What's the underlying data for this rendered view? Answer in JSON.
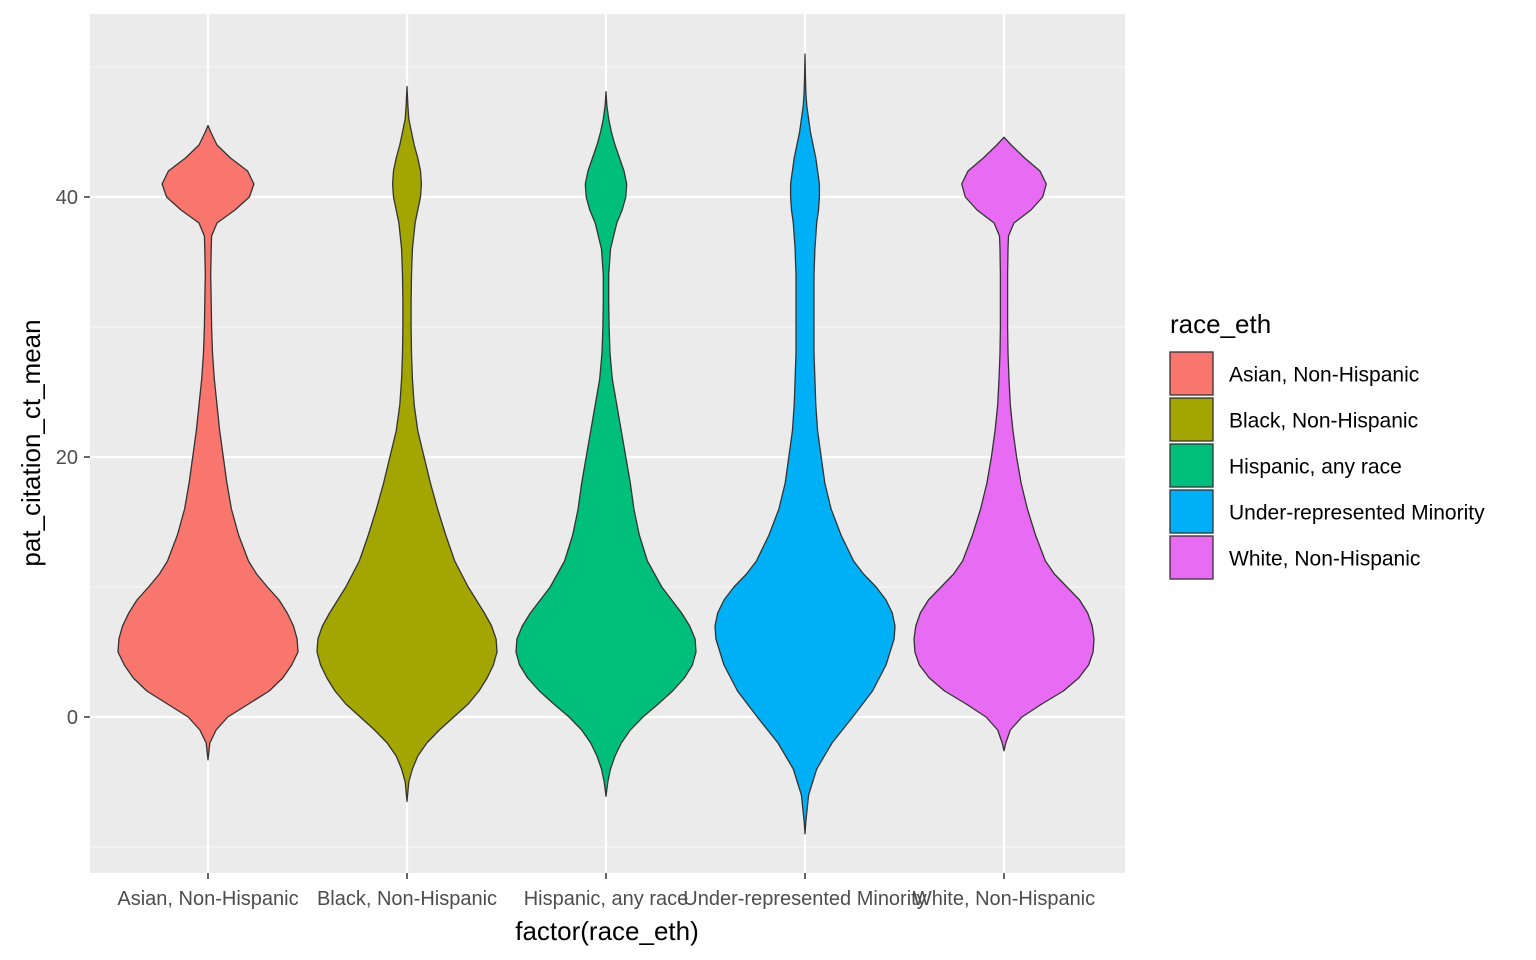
{
  "chart_data": {
    "type": "violin",
    "title": "",
    "xlabel": "factor(race_eth)",
    "ylabel": "pat_citation_ct_mean",
    "categories": [
      "Asian, Non-Hispanic",
      "Black, Non-Hispanic",
      "Hispanic, any race",
      "Under-represented Minority",
      "White, Non-Hispanic"
    ],
    "colors": [
      "#F8766D",
      "#A3A500",
      "#00BF7D",
      "#00B0F6",
      "#E76BF3"
    ],
    "ylim": [
      -10,
      50
    ],
    "yticks": [
      0,
      20,
      40
    ],
    "yticks_minor": [
      -10,
      10,
      30,
      50
    ],
    "grid": true,
    "legend": {
      "title": "race_eth",
      "position": "right",
      "entries": [
        "Asian, Non-Hispanic",
        "Black, Non-Hispanic",
        "Hispanic, any race",
        "Under-represented Minority",
        "White, Non-Hispanic"
      ]
    },
    "series": [
      {
        "range": [
          -3.3,
          45.5
        ],
        "profile": [
          [
            -3.3,
            0
          ],
          [
            -2,
            0.02
          ],
          [
            -1,
            0.09
          ],
          [
            0,
            0.22
          ],
          [
            1,
            0.45
          ],
          [
            2,
            0.68
          ],
          [
            3,
            0.83
          ],
          [
            4,
            0.93
          ],
          [
            5,
            1.0
          ],
          [
            6,
            0.99
          ],
          [
            7,
            0.95
          ],
          [
            8,
            0.88
          ],
          [
            9,
            0.79
          ],
          [
            10,
            0.66
          ],
          [
            11,
            0.54
          ],
          [
            12,
            0.45
          ],
          [
            14,
            0.34
          ],
          [
            16,
            0.26
          ],
          [
            18,
            0.21
          ],
          [
            20,
            0.17
          ],
          [
            22,
            0.13
          ],
          [
            24,
            0.1
          ],
          [
            26,
            0.07
          ],
          [
            28,
            0.05
          ],
          [
            30,
            0.04
          ],
          [
            32,
            0.035
          ],
          [
            34,
            0.03
          ],
          [
            36,
            0.035
          ],
          [
            37,
            0.04
          ],
          [
            38,
            0.1
          ],
          [
            39,
            0.3
          ],
          [
            40,
            0.46
          ],
          [
            41,
            0.51
          ],
          [
            42,
            0.44
          ],
          [
            43,
            0.25
          ],
          [
            44,
            0.1
          ],
          [
            45,
            0.03
          ],
          [
            45.5,
            0
          ]
        ]
      },
      {
        "range": [
          -6.5,
          48.5
        ],
        "profile": [
          [
            -6.5,
            0
          ],
          [
            -5,
            0.02
          ],
          [
            -4,
            0.06
          ],
          [
            -3,
            0.12
          ],
          [
            -2,
            0.22
          ],
          [
            -1,
            0.36
          ],
          [
            0,
            0.52
          ],
          [
            1,
            0.68
          ],
          [
            2,
            0.8
          ],
          [
            3,
            0.89
          ],
          [
            4,
            0.96
          ],
          [
            5,
            1.0
          ],
          [
            6,
            0.99
          ],
          [
            7,
            0.94
          ],
          [
            8,
            0.86
          ],
          [
            9,
            0.77
          ],
          [
            10,
            0.68
          ],
          [
            12,
            0.53
          ],
          [
            14,
            0.43
          ],
          [
            16,
            0.34
          ],
          [
            18,
            0.26
          ],
          [
            20,
            0.19
          ],
          [
            22,
            0.12
          ],
          [
            24,
            0.08
          ],
          [
            26,
            0.06
          ],
          [
            28,
            0.05
          ],
          [
            30,
            0.045
          ],
          [
            32,
            0.045
          ],
          [
            34,
            0.05
          ],
          [
            36,
            0.06
          ],
          [
            38,
            0.09
          ],
          [
            39,
            0.12
          ],
          [
            40,
            0.15
          ],
          [
            41,
            0.16
          ],
          [
            42,
            0.15
          ],
          [
            43,
            0.12
          ],
          [
            44,
            0.08
          ],
          [
            45,
            0.05
          ],
          [
            46,
            0.02
          ],
          [
            47,
            0.01
          ],
          [
            48.5,
            0
          ]
        ]
      },
      {
        "range": [
          -6.1,
          48.1
        ],
        "profile": [
          [
            -6.1,
            0
          ],
          [
            -5,
            0.02
          ],
          [
            -4,
            0.05
          ],
          [
            -3,
            0.1
          ],
          [
            -2,
            0.17
          ],
          [
            -1,
            0.27
          ],
          [
            0,
            0.41
          ],
          [
            1,
            0.58
          ],
          [
            2,
            0.74
          ],
          [
            3,
            0.87
          ],
          [
            4,
            0.96
          ],
          [
            5,
            1.0
          ],
          [
            6,
            0.99
          ],
          [
            7,
            0.93
          ],
          [
            8,
            0.84
          ],
          [
            9,
            0.73
          ],
          [
            10,
            0.62
          ],
          [
            12,
            0.46
          ],
          [
            14,
            0.37
          ],
          [
            16,
            0.31
          ],
          [
            18,
            0.27
          ],
          [
            20,
            0.22
          ],
          [
            22,
            0.17
          ],
          [
            24,
            0.12
          ],
          [
            26,
            0.07
          ],
          [
            28,
            0.045
          ],
          [
            30,
            0.035
          ],
          [
            32,
            0.03
          ],
          [
            34,
            0.03
          ],
          [
            36,
            0.05
          ],
          [
            38,
            0.12
          ],
          [
            39,
            0.18
          ],
          [
            40,
            0.22
          ],
          [
            41,
            0.23
          ],
          [
            42,
            0.2
          ],
          [
            43,
            0.15
          ],
          [
            44,
            0.1
          ],
          [
            45,
            0.06
          ],
          [
            46,
            0.03
          ],
          [
            47,
            0.01
          ],
          [
            48.1,
            0
          ]
        ]
      },
      {
        "range": [
          -9,
          51
        ],
        "profile": [
          [
            -9,
            0
          ],
          [
            -8,
            0.01
          ],
          [
            -6,
            0.04
          ],
          [
            -4,
            0.13
          ],
          [
            -2,
            0.3
          ],
          [
            0,
            0.53
          ],
          [
            2,
            0.75
          ],
          [
            4,
            0.9
          ],
          [
            6,
            0.99
          ],
          [
            7,
            1.0
          ],
          [
            8,
            0.97
          ],
          [
            9,
            0.9
          ],
          [
            10,
            0.79
          ],
          [
            11,
            0.65
          ],
          [
            12,
            0.54
          ],
          [
            14,
            0.4
          ],
          [
            16,
            0.29
          ],
          [
            18,
            0.22
          ],
          [
            20,
            0.18
          ],
          [
            22,
            0.14
          ],
          [
            24,
            0.12
          ],
          [
            26,
            0.11
          ],
          [
            28,
            0.1
          ],
          [
            30,
            0.1
          ],
          [
            32,
            0.1
          ],
          [
            34,
            0.1
          ],
          [
            36,
            0.11
          ],
          [
            38,
            0.13
          ],
          [
            39,
            0.15
          ],
          [
            40,
            0.16
          ],
          [
            41,
            0.16
          ],
          [
            42,
            0.14
          ],
          [
            43,
            0.12
          ],
          [
            44,
            0.09
          ],
          [
            45,
            0.06
          ],
          [
            46,
            0.04
          ],
          [
            47,
            0.02
          ],
          [
            48,
            0.01
          ],
          [
            49,
            0.005
          ],
          [
            51,
            0
          ]
        ]
      },
      {
        "range": [
          -2.6,
          44.6
        ],
        "profile": [
          [
            -2.6,
            0
          ],
          [
            -2,
            0.02
          ],
          [
            -1,
            0.07
          ],
          [
            0,
            0.2
          ],
          [
            1,
            0.42
          ],
          [
            2,
            0.66
          ],
          [
            3,
            0.83
          ],
          [
            4,
            0.94
          ],
          [
            5,
            0.99
          ],
          [
            6,
            1.0
          ],
          [
            7,
            0.98
          ],
          [
            8,
            0.93
          ],
          [
            9,
            0.84
          ],
          [
            10,
            0.7
          ],
          [
            11,
            0.56
          ],
          [
            12,
            0.46
          ],
          [
            14,
            0.35
          ],
          [
            16,
            0.26
          ],
          [
            18,
            0.19
          ],
          [
            20,
            0.14
          ],
          [
            22,
            0.1
          ],
          [
            24,
            0.07
          ],
          [
            26,
            0.055
          ],
          [
            28,
            0.045
          ],
          [
            30,
            0.04
          ],
          [
            32,
            0.04
          ],
          [
            34,
            0.04
          ],
          [
            36,
            0.045
          ],
          [
            37,
            0.05
          ],
          [
            38,
            0.11
          ],
          [
            39,
            0.3
          ],
          [
            40,
            0.43
          ],
          [
            41,
            0.47
          ],
          [
            42,
            0.4
          ],
          [
            43,
            0.23
          ],
          [
            44,
            0.08
          ],
          [
            44.6,
            0
          ]
        ]
      }
    ]
  }
}
